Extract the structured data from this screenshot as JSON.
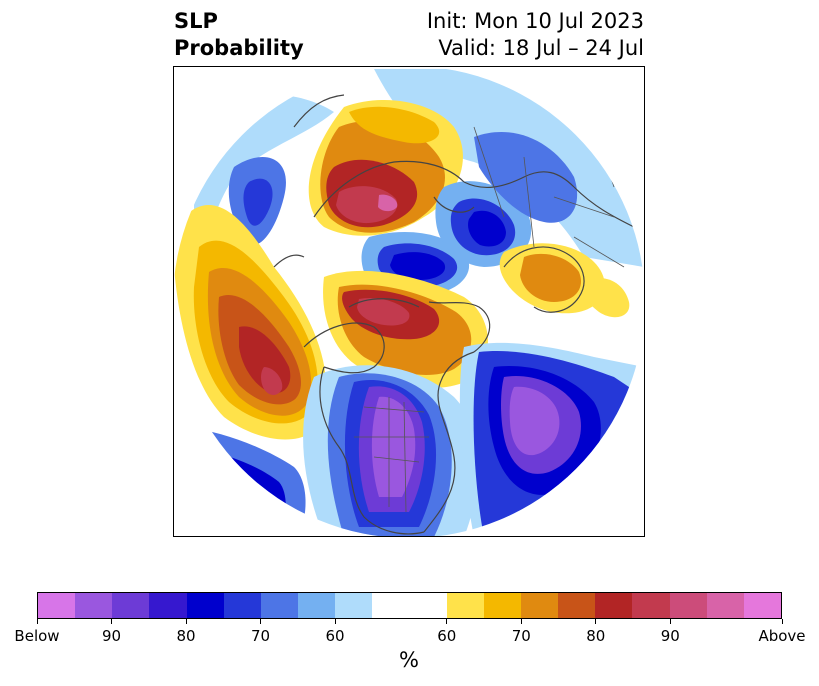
{
  "title": {
    "variable": "SLP",
    "kind": "Probability",
    "init": "Init: Mon 10 Jul 2023",
    "valid": "Valid: 18 Jul – 24 Jul"
  },
  "map": {
    "projection": "north-polar-stereographic",
    "features": [
      "coastlines",
      "country-borders",
      "state-borders"
    ],
    "shading": [
      {
        "region": "central-north-pacific",
        "category": "Above",
        "peak": 80
      },
      {
        "region": "canadian-archipelago-greenland-strait",
        "category": "Above",
        "peak": 80
      },
      {
        "region": "east-siberia-chukotka",
        "category": "Above",
        "peak": 90
      },
      {
        "region": "scandinavia-north-sea",
        "category": "Above",
        "peak": 70
      },
      {
        "region": "arctic-ocean-laptev",
        "category": "Below",
        "peak": 80
      },
      {
        "region": "kara-sea-north-russia",
        "category": "Below",
        "peak": 80
      },
      {
        "region": "north-america-western-us",
        "category": "Below",
        "peak": 90
      },
      {
        "region": "north-atlantic",
        "category": "Below",
        "peak": 90
      },
      {
        "region": "east-pacific-near-mexico",
        "category": "Below",
        "peak": 90
      }
    ]
  },
  "colorbar": {
    "colors": [
      "#d775e8",
      "#9a57df",
      "#6d3bd6",
      "#3618cf",
      "#0000cd",
      "#2538d8",
      "#4d75e6",
      "#74b0f1",
      "#afdcfb",
      "#ffffff",
      "#ffe24a",
      "#f4b800",
      "#e08a10",
      "#c85418",
      "#b22525",
      "#c23a4e",
      "#cc4c7a",
      "#d863a8",
      "#e577dc"
    ],
    "weights": [
      1,
      1,
      1,
      1,
      1,
      1,
      1,
      1,
      1,
      2,
      1,
      1,
      1,
      1,
      1,
      1,
      1,
      1,
      1
    ],
    "tick_labels": [
      "Below",
      "90",
      "80",
      "70",
      "60",
      "60",
      "70",
      "80",
      "90",
      "Above"
    ],
    "unit": "%"
  }
}
